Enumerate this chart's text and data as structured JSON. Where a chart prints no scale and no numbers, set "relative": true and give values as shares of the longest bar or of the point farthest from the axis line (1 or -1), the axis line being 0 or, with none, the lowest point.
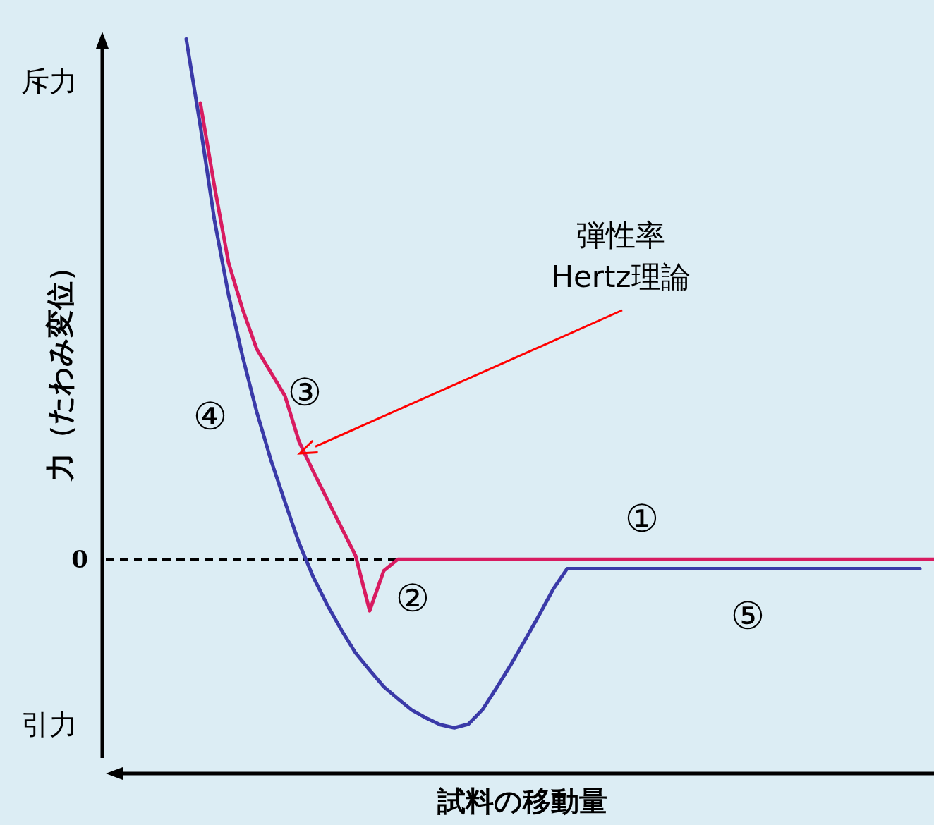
{
  "chart_data": {
    "type": "line",
    "relative": true,
    "xlabel": "試料の移動量",
    "ylabel": "力（たわみ変位）",
    "categories": [
      null,
      null,
      null,
      null,
      null,
      null,
      null,
      null,
      null,
      null,
      null,
      null,
      null,
      null,
      null,
      null,
      null,
      null,
      null,
      null,
      null,
      null,
      null,
      null,
      null,
      null,
      null,
      null,
      null,
      null,
      null,
      null,
      null,
      null,
      null,
      null,
      null,
      null,
      null,
      null,
      null,
      null,
      null,
      null,
      null,
      null,
      null,
      null,
      null,
      null,
      null,
      null,
      null,
      null
    ],
    "ref_lines": [
      {
        "axis": "y",
        "value": 0,
        "label": "0",
        "color": "#000000",
        "line_style": "dashed"
      }
    ],
    "annotations": [
      "斥力",
      "引力",
      "①",
      "②",
      "③",
      "④",
      "⑤",
      "弾性率\nHertz理論"
    ],
    "series": [
      {
        "color": "#3a3aa8",
        "values": [
          1.0,
          0.833,
          0.652,
          0.508,
          0.389,
          0.283,
          0.191,
          0.11,
          0.031,
          -0.034,
          -0.088,
          -0.136,
          -0.18,
          -0.213,
          -0.245,
          -0.268,
          -0.29,
          -0.305,
          -0.318,
          -0.324,
          -0.317,
          -0.289,
          -0.247,
          -0.203,
          -0.156,
          -0.108,
          -0.058,
          -0.018,
          -0.018,
          -0.018,
          -0.018,
          -0.018,
          -0.018,
          -0.018,
          -0.018,
          -0.018,
          -0.018,
          -0.018,
          -0.018,
          -0.018,
          -0.018,
          -0.018,
          -0.018,
          -0.018,
          -0.018,
          -0.018,
          -0.018,
          -0.018,
          -0.018,
          -0.018,
          -0.018,
          -0.018,
          -0.018,
          null
        ]
      },
      {
        "color": "#d81b60",
        "values": [
          null,
          0.877,
          0.717,
          0.57,
          0.48,
          0.404,
          0.359,
          0.314,
          0.226,
          0.169,
          0.115,
          0.061,
          0.007,
          -0.099,
          -0.022,
          0,
          0,
          0,
          0,
          0,
          0,
          0,
          0,
          0,
          0,
          0,
          0,
          0,
          0,
          0,
          0,
          0,
          0,
          0,
          0,
          0,
          0,
          0,
          0,
          0,
          0,
          0,
          0,
          0,
          0,
          0,
          0,
          0,
          0,
          0,
          0,
          0,
          0,
          0
        ]
      }
    ]
  }
}
